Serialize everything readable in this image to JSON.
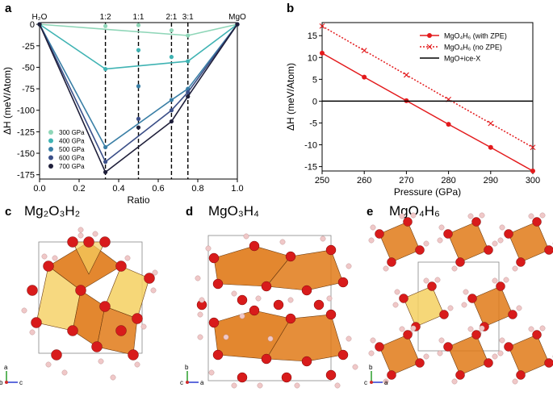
{
  "panels": {
    "a": "a",
    "b": "b",
    "c": "c",
    "d": "d",
    "e": "e"
  },
  "structures": {
    "c": {
      "title": "Mg₂O₃H₂",
      "axes": [
        "a",
        "b",
        "c"
      ]
    },
    "d": {
      "title": "MgO₃H₄",
      "axes": [
        "b",
        "c",
        "a"
      ]
    },
    "e": {
      "title": "MgO₄H₆",
      "axes": [
        "b",
        "c",
        "a"
      ]
    }
  },
  "colors": {
    "oxygen": "#d81b1b",
    "hydrogen": "#f0c8c8",
    "polyA": "#e07a18",
    "polyB": "#f5d060",
    "bondGray": "#8c6a40"
  },
  "chart_data": [
    {
      "type": "line",
      "panel": "a",
      "title": "",
      "xlabel": "Ratio",
      "ylabel": "ΔH (meV/Atom)",
      "xlim": [
        0.0,
        1.0
      ],
      "ylim": [
        -180,
        2
      ],
      "xticks": [
        "0.0",
        "0.2",
        "0.4",
        "0.6",
        "0.8",
        "1.0"
      ],
      "yticks": [
        "0",
        "-25",
        "-50",
        "-75",
        "-100",
        "-125",
        "-150",
        "-175"
      ],
      "top_labels": [
        {
          "x": 0.0,
          "text": "H₂O"
        },
        {
          "x": 0.333,
          "text": "1:2"
        },
        {
          "x": 0.5,
          "text": "1:1"
        },
        {
          "x": 0.667,
          "text": "2:1"
        },
        {
          "x": 0.75,
          "text": "3:1"
        },
        {
          "x": 1.0,
          "text": "MgO"
        }
      ],
      "dashed_x": [
        0.333,
        0.5,
        0.667,
        0.75
      ],
      "legend_position": "lower-left",
      "series": [
        {
          "name": "300 GPa",
          "color": "#8fd6b8",
          "hull": [
            [
              0.0,
              0
            ],
            [
              0.75,
              -13
            ],
            [
              1.0,
              0
            ]
          ],
          "points": [
            [
              0.0,
              0
            ],
            [
              0.333,
              -2
            ],
            [
              0.5,
              -1
            ],
            [
              0.667,
              -7
            ],
            [
              0.75,
              -13
            ],
            [
              1.0,
              0
            ]
          ]
        },
        {
          "name": "400 GPa",
          "color": "#3fb3b3",
          "hull": [
            [
              0.0,
              0
            ],
            [
              0.333,
              -52
            ],
            [
              0.75,
              -43
            ],
            [
              1.0,
              0
            ]
          ],
          "points": [
            [
              0.0,
              0
            ],
            [
              0.333,
              -52
            ],
            [
              0.5,
              -30
            ],
            [
              0.667,
              -38
            ],
            [
              0.75,
              -43
            ],
            [
              1.0,
              0
            ]
          ]
        },
        {
          "name": "500 GPa",
          "color": "#3a7fa6",
          "hull": [
            [
              0.0,
              0
            ],
            [
              0.333,
              -143
            ],
            [
              0.667,
              -88
            ],
            [
              0.75,
              -75
            ],
            [
              1.0,
              0
            ]
          ],
          "points": [
            [
              0.0,
              0
            ],
            [
              0.333,
              -143
            ],
            [
              0.5,
              -72
            ],
            [
              0.667,
              -88
            ],
            [
              0.75,
              -75
            ],
            [
              1.0,
              0
            ]
          ]
        },
        {
          "name": "600 GPa",
          "color": "#3b4f88",
          "hull": [
            [
              0.0,
              0
            ],
            [
              0.333,
              -160
            ],
            [
              0.667,
              -100
            ],
            [
              0.75,
              -79
            ],
            [
              1.0,
              0
            ]
          ],
          "points": [
            [
              0.0,
              0
            ],
            [
              0.333,
              -160
            ],
            [
              0.5,
              -110
            ],
            [
              0.667,
              -100
            ],
            [
              0.75,
              -79
            ],
            [
              1.0,
              0
            ]
          ]
        },
        {
          "name": "700 GPa",
          "color": "#1f1f3a",
          "hull": [
            [
              0.0,
              0
            ],
            [
              0.333,
              -172
            ],
            [
              0.667,
              -113
            ],
            [
              0.75,
              -84
            ],
            [
              1.0,
              0
            ]
          ],
          "points": [
            [
              0.0,
              0
            ],
            [
              0.333,
              -172
            ],
            [
              0.5,
              -120
            ],
            [
              0.667,
              -113
            ],
            [
              0.75,
              -84
            ],
            [
              1.0,
              0
            ]
          ]
        }
      ]
    },
    {
      "type": "line",
      "panel": "b",
      "title": "",
      "xlabel": "Pressure (GPa)",
      "ylabel": "ΔH (meV/Atom)",
      "xlim": [
        250,
        300
      ],
      "ylim": [
        -16,
        18
      ],
      "xticks": [
        "250",
        "260",
        "270",
        "280",
        "290",
        "300"
      ],
      "yticks": [
        "15",
        "10",
        "5",
        "0",
        "-5",
        "-10",
        "-15"
      ],
      "legend_position": "top-right",
      "series": [
        {
          "name": "MgO₄H₆ (with ZPE)",
          "color": "#e31a1c",
          "style": "solid",
          "marker": "dot",
          "x": [
            250,
            260,
            270,
            280,
            290,
            300
          ],
          "y": [
            11,
            5.5,
            0.1,
            -5.3,
            -10.6,
            -16
          ]
        },
        {
          "name": "MgO₄H₆ (no ZPE)",
          "color": "#e31a1c",
          "style": "dotted",
          "marker": "x",
          "x": [
            250,
            260,
            270,
            280,
            290,
            300
          ],
          "y": [
            17.2,
            11.6,
            6.0,
            0.4,
            -5.1,
            -10.6
          ]
        },
        {
          "name": "MgO+ice-X",
          "color": "#000000",
          "style": "solid",
          "marker": "none",
          "x": [
            250,
            300
          ],
          "y": [
            0,
            0
          ]
        }
      ]
    }
  ]
}
